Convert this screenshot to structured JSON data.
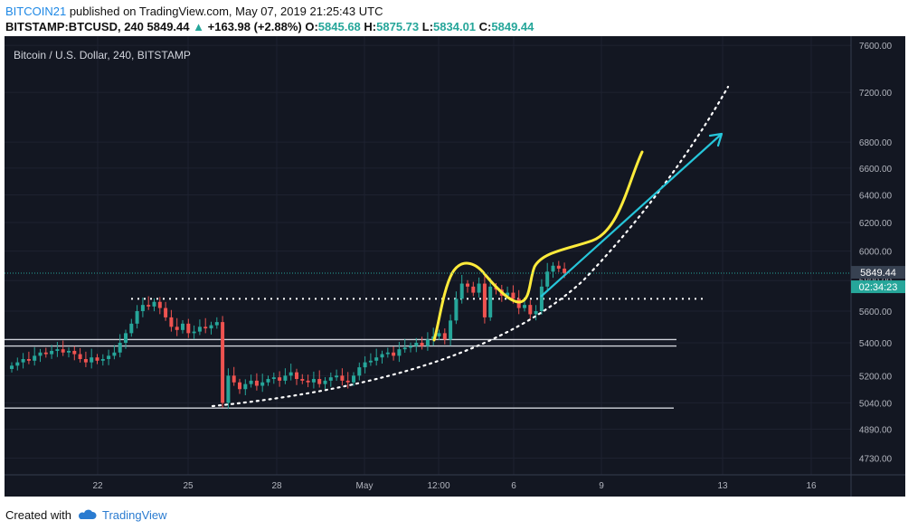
{
  "header": {
    "user": "BITCOIN21",
    "published": "published on TradingView.com, May 07, 2019 21:25:43 UTC",
    "symbol": "BITSTAMP:BTCUSD, 240",
    "last": "5849.44",
    "change": "+163.98 (+2.88%)",
    "o_label": "O:",
    "o": "5845.68",
    "h_label": "H:",
    "h": "5875.73",
    "l_label": "L:",
    "l": "5834.01",
    "c_label": "C:",
    "c": "5849.44"
  },
  "footer": {
    "created_with": "Created with",
    "brand": "TradingView"
  },
  "colors": {
    "bg": "#131722",
    "up": "#26a69a",
    "down": "#ef5350",
    "price_badge": "#374151",
    "countdown_badge": "#26a69a",
    "yellow": "#ffeb3b",
    "cyan": "#26c6da",
    "hline": "#d1d4dc",
    "dots": "#ffffff"
  },
  "chart_data": {
    "type": "candlestick",
    "title": "Bitcoin / U.S. Dollar, 240, BITSTAMP",
    "scale": "log",
    "y_ticks": [
      "4730.00",
      "4890.00",
      "5040.00",
      "5200.00",
      "5400.00",
      "5600.00",
      "5800.00",
      "6000.00",
      "6200.00",
      "6400.00",
      "6600.00",
      "6800.00",
      "7200.00",
      "7600.00"
    ],
    "x_ticks": [
      "22",
      "25",
      "28",
      "May",
      "12:00",
      "6",
      "9",
      "13",
      "16"
    ],
    "last_price": "5849.44",
    "countdown": "02:34:23",
    "candles_close": [
      5260,
      5280,
      5300,
      5290,
      5320,
      5340,
      5330,
      5350,
      5360,
      5340,
      5350,
      5330,
      5300,
      5280,
      5310,
      5290,
      5300,
      5320,
      5340,
      5400,
      5460,
      5520,
      5600,
      5640,
      5630,
      5660,
      5620,
      5560,
      5500,
      5480,
      5520,
      5460,
      5470,
      5500,
      5490,
      5510,
      5530,
      5040,
      5200,
      5160,
      5120,
      5150,
      5170,
      5140,
      5160,
      5180,
      5190,
      5170,
      5200,
      5220,
      5180,
      5170,
      5160,
      5180,
      5150,
      5170,
      5190,
      5200,
      5170,
      5160,
      5200,
      5250,
      5280,
      5290,
      5310,
      5330,
      5340,
      5320,
      5360,
      5370,
      5380,
      5400,
      5380,
      5420,
      5440,
      5460,
      5420,
      5540,
      5680,
      5780,
      5760,
      5720,
      5780,
      5560,
      5760,
      5740,
      5700,
      5720,
      5680,
      5620,
      5640,
      5580,
      5600,
      5760,
      5860,
      5900,
      5880,
      5849
    ],
    "annotations": {
      "resistance_dotted": 5680,
      "hlines": [
        5420,
        5380,
        5010
      ],
      "parabola": "dotted white arc from 25 to right edge",
      "arrow": "cyan up-right arrow"
    }
  }
}
